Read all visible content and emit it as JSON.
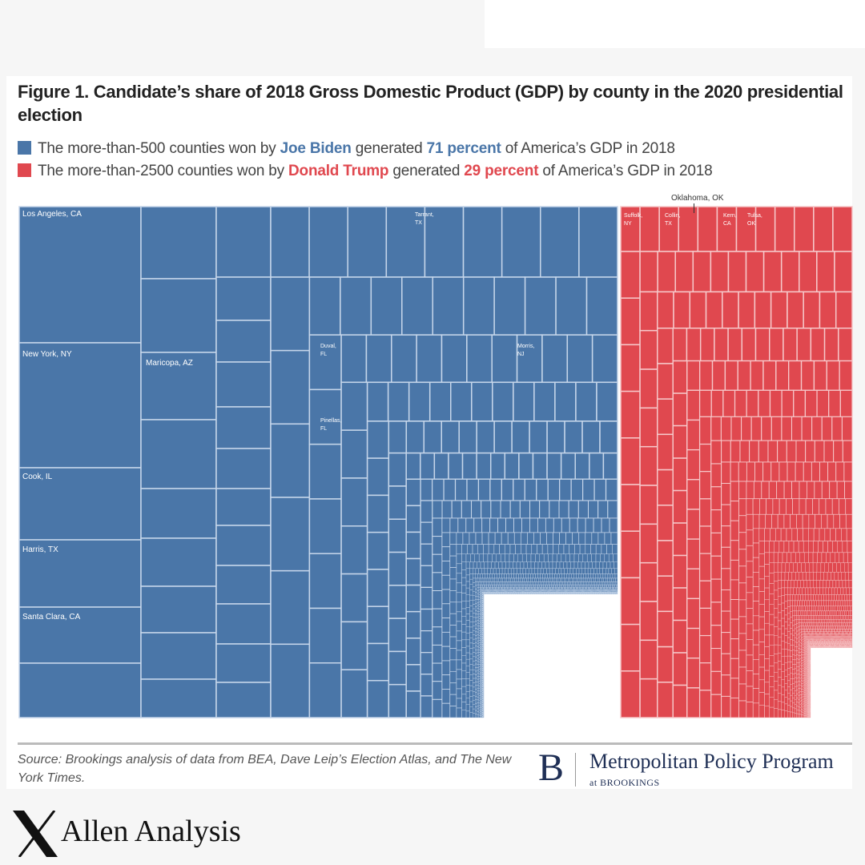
{
  "figure": {
    "title": "Figure 1. Candidate’s share of 2018 Gross Domestic Product (GDP) by county in the 2020 presidential election",
    "source": "Source: Brookings analysis of data from BEA, Dave Leip’s Election Atlas, and The New York Times.",
    "publisher": "Metropolitan Policy Program",
    "publisher_sub": "at BROOKINGS",
    "publisher_logo": "B"
  },
  "legend": [
    {
      "pre": "The more-than-500 counties won by ",
      "name": "Joe Biden",
      "mid": " generated ",
      "pct": "71 percent",
      "post": " of America’s GDP in 2018",
      "color": "#4a76a8"
    },
    {
      "pre": "The more-than-2500 counties won by ",
      "name": "Donald Trump",
      "mid": " generated ",
      "pct": "29 percent",
      "post": " of America’s GDP in 2018",
      "color": "#e0484f"
    }
  ],
  "chart_data": {
    "type": "treemap",
    "groups": [
      {
        "name": "Joe Biden",
        "counties": "more-than-500",
        "share_percent": 71,
        "color": "#4a76a8",
        "labeled_counties": [
          "Los Angeles, CA",
          "New York, NY",
          "Cook, IL",
          "Harris, TX",
          "Santa Clara, CA",
          "Maricopa, AZ",
          "Tarrant, TX",
          "Duval, FL",
          "Morris, NJ",
          "Pinellas, FL"
        ]
      },
      {
        "name": "Donald Trump",
        "counties": "more-than-2500",
        "share_percent": 29,
        "color": "#e0484f",
        "labeled_counties": [
          "Suffolk, NY",
          "Collin, TX",
          "Oklahoma, OK",
          "Kern, CA",
          "Tulsa, OK"
        ]
      }
    ]
  },
  "watermark": {
    "name": "Allen Analysis",
    "logo": "X"
  }
}
